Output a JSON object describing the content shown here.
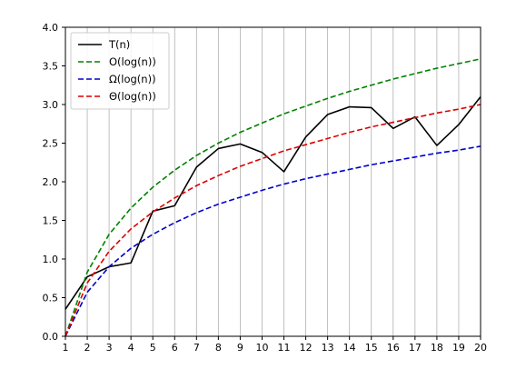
{
  "chart_data": {
    "type": "line",
    "title": "",
    "xlabel": "",
    "ylabel": "",
    "xlim": [
      1,
      20
    ],
    "ylim": [
      0,
      4
    ],
    "x_ticks": [
      "1",
      "2",
      "3",
      "4",
      "5",
      "6",
      "7",
      "8",
      "9",
      "10",
      "11",
      "12",
      "13",
      "14",
      "15",
      "16",
      "17",
      "18",
      "19",
      "20"
    ],
    "y_ticks": [
      "0.0",
      "0.5",
      "1.0",
      "1.5",
      "2.0",
      "2.5",
      "3.0",
      "3.5",
      "4.0"
    ],
    "grid": "vertical",
    "legend_position": "top-left",
    "x": [
      1,
      2,
      3,
      4,
      5,
      6,
      7,
      8,
      9,
      10,
      11,
      12,
      13,
      14,
      15,
      16,
      17,
      18,
      19,
      20
    ],
    "series": [
      {
        "name": "T(n)",
        "color": "#000000",
        "style": "solid",
        "values": [
          0.35,
          0.77,
          0.9,
          0.95,
          1.62,
          1.69,
          2.19,
          2.43,
          2.49,
          2.38,
          2.13,
          2.58,
          2.87,
          2.97,
          2.96,
          2.69,
          2.84,
          2.47,
          2.74,
          3.1
        ]
      },
      {
        "name": "O(log(n))",
        "color": "#008000",
        "style": "dashed",
        "formula": "1.2*log(n)",
        "values": [
          0.0,
          0.83,
          1.32,
          1.66,
          1.93,
          2.15,
          2.34,
          2.5,
          2.64,
          2.76,
          2.88,
          2.98,
          3.08,
          3.17,
          3.25,
          3.33,
          3.4,
          3.47,
          3.53,
          3.59
        ]
      },
      {
        "name": "Ω(log(n))",
        "color": "#0000cc",
        "style": "dashed",
        "formula": "0.82*log(n)",
        "values": [
          0.0,
          0.57,
          0.9,
          1.14,
          1.32,
          1.47,
          1.6,
          1.71,
          1.8,
          1.89,
          1.97,
          2.04,
          2.1,
          2.16,
          2.22,
          2.27,
          2.32,
          2.37,
          2.41,
          2.46
        ]
      },
      {
        "name": "Θ(log(n))",
        "color": "#dd0000",
        "style": "dashed",
        "formula": "1.0*log(n)",
        "values": [
          0.0,
          0.69,
          1.1,
          1.39,
          1.61,
          1.79,
          1.95,
          2.08,
          2.2,
          2.3,
          2.4,
          2.48,
          2.56,
          2.64,
          2.71,
          2.77,
          2.83,
          2.89,
          2.94,
          3.0
        ]
      }
    ]
  }
}
